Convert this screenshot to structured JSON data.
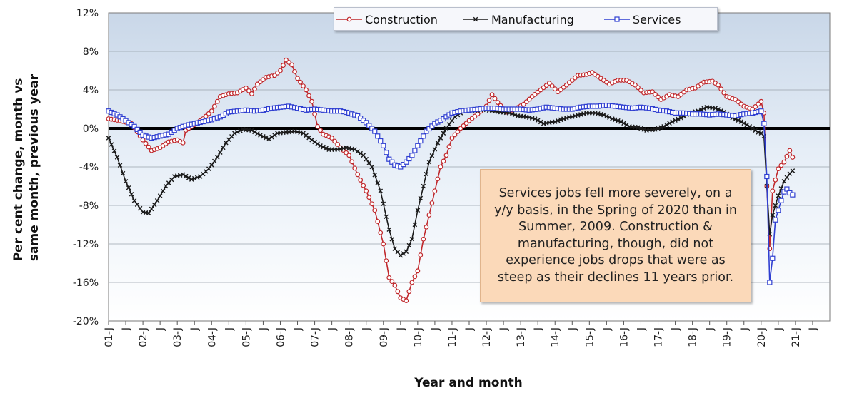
{
  "chart_data": {
    "type": "line",
    "xlabel": "Year and month",
    "ylabel": "Per cent change, month vs same month, previous year",
    "ylim": [
      -20,
      12
    ],
    "yticks": [
      "12%",
      "8%",
      "4%",
      "0%",
      "-4%",
      "-8%",
      "-12%",
      "-16%",
      "-20%"
    ],
    "x_tick_labels": [
      "01-J",
      "J",
      "02-J",
      "J",
      "03-J",
      "J",
      "04-J",
      "J",
      "05-J",
      "J",
      "06-J",
      "J",
      "07-J",
      "J",
      "08-J",
      "J",
      "09-J",
      "J",
      "10-J",
      "J",
      "11-J",
      "J",
      "12-J",
      "J",
      "13-J",
      "J",
      "14-J",
      "J",
      "15-J",
      "J",
      "16-J",
      "J",
      "17-J",
      "J",
      "18-J",
      "J",
      "19-J",
      "J",
      "20-J",
      "J",
      "21-J",
      "J"
    ],
    "legend_position": "top-center",
    "annotation": "Services jobs fell more severely, on a y/y basis, in the Spring of 2020 than in Summer, 2009. Construction & manufacturing, though, did not experience jobs drops that were as steep as their declines 11 years prior.",
    "series": [
      {
        "name": "Construction",
        "color": "#c0282c",
        "marker": "circle",
        "points": [
          [
            "2001-01",
            1.0
          ],
          [
            "2001-05",
            0.8
          ],
          [
            "2001-09",
            0.5
          ],
          [
            "2002-01",
            -1.2
          ],
          [
            "2002-04",
            -2.3
          ],
          [
            "2002-07",
            -2.0
          ],
          [
            "2002-10",
            -1.4
          ],
          [
            "2003-01",
            -1.2
          ],
          [
            "2003-03",
            -1.5
          ],
          [
            "2003-04",
            -0.2
          ],
          [
            "2003-07",
            0.4
          ],
          [
            "2003-10",
            1.0
          ],
          [
            "2004-01",
            1.8
          ],
          [
            "2004-04",
            3.3
          ],
          [
            "2004-07",
            3.6
          ],
          [
            "2004-10",
            3.7
          ],
          [
            "2005-01",
            4.2
          ],
          [
            "2005-03",
            3.6
          ],
          [
            "2005-05",
            4.6
          ],
          [
            "2005-08",
            5.3
          ],
          [
            "2005-11",
            5.5
          ],
          [
            "2006-01",
            6.0
          ],
          [
            "2006-03",
            7.1
          ],
          [
            "2006-05",
            6.6
          ],
          [
            "2006-07",
            5.2
          ],
          [
            "2006-10",
            4.0
          ],
          [
            "2006-12",
            2.8
          ],
          [
            "2007-02",
            0.2
          ],
          [
            "2007-04",
            -0.6
          ],
          [
            "2007-07",
            -1.0
          ],
          [
            "2007-10",
            -2.0
          ],
          [
            "2008-01",
            -2.8
          ],
          [
            "2008-04",
            -4.8
          ],
          [
            "2008-07",
            -6.5
          ],
          [
            "2008-10",
            -8.5
          ],
          [
            "2009-01",
            -12.0
          ],
          [
            "2009-03",
            -15.5
          ],
          [
            "2009-05",
            -16.3
          ],
          [
            "2009-07",
            -17.6
          ],
          [
            "2009-09",
            -17.9
          ],
          [
            "2009-11",
            -16.0
          ],
          [
            "2010-01",
            -14.8
          ],
          [
            "2010-03",
            -11.5
          ],
          [
            "2010-05",
            -9.0
          ],
          [
            "2010-07",
            -6.5
          ],
          [
            "2010-09",
            -4.0
          ],
          [
            "2010-11",
            -2.8
          ],
          [
            "2011-01",
            -1.0
          ],
          [
            "2011-04",
            0.0
          ],
          [
            "2011-07",
            0.8
          ],
          [
            "2011-10",
            1.5
          ],
          [
            "2012-01",
            2.3
          ],
          [
            "2012-03",
            3.5
          ],
          [
            "2012-05",
            2.7
          ],
          [
            "2012-08",
            1.7
          ],
          [
            "2012-11",
            2.0
          ],
          [
            "2013-02",
            2.5
          ],
          [
            "2013-05",
            3.3
          ],
          [
            "2013-08",
            4.0
          ],
          [
            "2013-11",
            4.7
          ],
          [
            "2014-02",
            3.8
          ],
          [
            "2014-05",
            4.5
          ],
          [
            "2014-09",
            5.5
          ],
          [
            "2014-12",
            5.6
          ],
          [
            "2015-02",
            5.8
          ],
          [
            "2015-05",
            5.2
          ],
          [
            "2015-08",
            4.6
          ],
          [
            "2015-11",
            5.0
          ],
          [
            "2016-02",
            5.0
          ],
          [
            "2016-05",
            4.5
          ],
          [
            "2016-08",
            3.7
          ],
          [
            "2016-11",
            3.8
          ],
          [
            "2017-02",
            3.0
          ],
          [
            "2017-05",
            3.5
          ],
          [
            "2017-08",
            3.3
          ],
          [
            "2017-11",
            4.0
          ],
          [
            "2018-02",
            4.2
          ],
          [
            "2018-05",
            4.8
          ],
          [
            "2018-08",
            4.9
          ],
          [
            "2018-10",
            4.5
          ],
          [
            "2019-01",
            3.3
          ],
          [
            "2019-04",
            3.0
          ],
          [
            "2019-07",
            2.3
          ],
          [
            "2019-10",
            2.0
          ],
          [
            "2020-01",
            2.8
          ],
          [
            "2020-02",
            1.6
          ],
          [
            "2020-03",
            -6.0
          ],
          [
            "2020-04",
            -12.5
          ],
          [
            "2020-05",
            -6.5
          ],
          [
            "2020-07",
            -4.2
          ],
          [
            "2020-09",
            -3.5
          ],
          [
            "2020-11",
            -2.3
          ],
          [
            "2020-12",
            -3.0
          ]
        ]
      },
      {
        "name": "Manufacturing",
        "color": "#1a1a1a",
        "marker": "x",
        "points": [
          [
            "2001-01",
            -1.0
          ],
          [
            "2001-04",
            -3.0
          ],
          [
            "2001-07",
            -5.5
          ],
          [
            "2001-10",
            -7.5
          ],
          [
            "2002-01",
            -8.7
          ],
          [
            "2002-03",
            -8.8
          ],
          [
            "2002-06",
            -7.5
          ],
          [
            "2002-09",
            -6.0
          ],
          [
            "2002-12",
            -5.0
          ],
          [
            "2003-03",
            -4.8
          ],
          [
            "2003-06",
            -5.3
          ],
          [
            "2003-09",
            -5.0
          ],
          [
            "2003-12",
            -4.2
          ],
          [
            "2004-03",
            -3.0
          ],
          [
            "2004-06",
            -1.5
          ],
          [
            "2004-09",
            -0.5
          ],
          [
            "2004-12",
            -0.1
          ],
          [
            "2005-03",
            -0.2
          ],
          [
            "2005-06",
            -0.7
          ],
          [
            "2005-09",
            -1.1
          ],
          [
            "2005-12",
            -0.5
          ],
          [
            "2006-03",
            -0.4
          ],
          [
            "2006-06",
            -0.3
          ],
          [
            "2006-09",
            -0.5
          ],
          [
            "2006-12",
            -1.2
          ],
          [
            "2007-03",
            -1.8
          ],
          [
            "2007-06",
            -2.2
          ],
          [
            "2007-09",
            -2.2
          ],
          [
            "2007-12",
            -2.0
          ],
          [
            "2008-03",
            -2.2
          ],
          [
            "2008-06",
            -2.8
          ],
          [
            "2008-09",
            -4.0
          ],
          [
            "2008-12",
            -6.5
          ],
          [
            "2009-03",
            -10.5
          ],
          [
            "2009-05",
            -12.5
          ],
          [
            "2009-07",
            -13.2
          ],
          [
            "2009-09",
            -12.8
          ],
          [
            "2009-11",
            -11.5
          ],
          [
            "2010-01",
            -8.5
          ],
          [
            "2010-03",
            -6.0
          ],
          [
            "2010-05",
            -3.5
          ],
          [
            "2010-08",
            -1.5
          ],
          [
            "2010-11",
            0.0
          ],
          [
            "2011-02",
            1.2
          ],
          [
            "2011-05",
            1.8
          ],
          [
            "2011-09",
            1.8
          ],
          [
            "2011-12",
            2.0
          ],
          [
            "2012-03",
            1.8
          ],
          [
            "2012-06",
            1.7
          ],
          [
            "2012-09",
            1.6
          ],
          [
            "2012-12",
            1.3
          ],
          [
            "2013-03",
            1.2
          ],
          [
            "2013-06",
            1.0
          ],
          [
            "2013-09",
            0.5
          ],
          [
            "2014-01",
            0.7
          ],
          [
            "2014-04",
            1.0
          ],
          [
            "2014-08",
            1.3
          ],
          [
            "2014-12",
            1.6
          ],
          [
            "2015-03",
            1.6
          ],
          [
            "2015-06",
            1.4
          ],
          [
            "2015-09",
            1.0
          ],
          [
            "2015-12",
            0.7
          ],
          [
            "2016-03",
            0.2
          ],
          [
            "2016-06",
            0.1
          ],
          [
            "2016-09",
            -0.2
          ],
          [
            "2016-12",
            -0.1
          ],
          [
            "2017-03",
            0.2
          ],
          [
            "2017-06",
            0.7
          ],
          [
            "2017-09",
            1.1
          ],
          [
            "2017-12",
            1.6
          ],
          [
            "2018-03",
            1.8
          ],
          [
            "2018-06",
            2.2
          ],
          [
            "2018-09",
            2.1
          ],
          [
            "2018-12",
            1.7
          ],
          [
            "2019-03",
            1.1
          ],
          [
            "2019-06",
            0.7
          ],
          [
            "2019-09",
            0.2
          ],
          [
            "2019-12",
            -0.4
          ],
          [
            "2020-01",
            -0.5
          ],
          [
            "2020-02",
            -0.8
          ],
          [
            "2020-03",
            -6.0
          ],
          [
            "2020-04",
            -11.0
          ],
          [
            "2020-05",
            -9.0
          ],
          [
            "2020-07",
            -7.0
          ],
          [
            "2020-09",
            -5.5
          ],
          [
            "2020-11",
            -4.7
          ],
          [
            "2020-12",
            -4.4
          ]
        ]
      },
      {
        "name": "Services",
        "color": "#2f3fd1",
        "marker": "square",
        "points": [
          [
            "2001-01",
            1.8
          ],
          [
            "2001-04",
            1.4
          ],
          [
            "2001-07",
            0.8
          ],
          [
            "2001-10",
            0.2
          ],
          [
            "2002-01",
            -0.7
          ],
          [
            "2002-04",
            -1.0
          ],
          [
            "2002-07",
            -0.8
          ],
          [
            "2002-10",
            -0.6
          ],
          [
            "2003-01",
            0.0
          ],
          [
            "2003-04",
            0.3
          ],
          [
            "2003-07",
            0.5
          ],
          [
            "2003-10",
            0.7
          ],
          [
            "2004-01",
            0.9
          ],
          [
            "2004-04",
            1.2
          ],
          [
            "2004-07",
            1.7
          ],
          [
            "2004-10",
            1.8
          ],
          [
            "2005-01",
            1.9
          ],
          [
            "2005-04",
            1.8
          ],
          [
            "2005-07",
            1.9
          ],
          [
            "2005-10",
            2.1
          ],
          [
            "2006-01",
            2.2
          ],
          [
            "2006-04",
            2.3
          ],
          [
            "2006-07",
            2.1
          ],
          [
            "2006-10",
            1.9
          ],
          [
            "2007-01",
            2.0
          ],
          [
            "2007-04",
            1.9
          ],
          [
            "2007-07",
            1.8
          ],
          [
            "2007-10",
            1.8
          ],
          [
            "2008-01",
            1.6
          ],
          [
            "2008-04",
            1.3
          ],
          [
            "2008-07",
            0.6
          ],
          [
            "2008-10",
            -0.3
          ],
          [
            "2009-01",
            -1.8
          ],
          [
            "2009-03",
            -3.2
          ],
          [
            "2009-05",
            -3.8
          ],
          [
            "2009-07",
            -4.0
          ],
          [
            "2009-09",
            -3.5
          ],
          [
            "2009-11",
            -2.8
          ],
          [
            "2010-01",
            -1.8
          ],
          [
            "2010-04",
            -0.3
          ],
          [
            "2010-07",
            0.5
          ],
          [
            "2010-10",
            1.0
          ],
          [
            "2011-01",
            1.6
          ],
          [
            "2011-04",
            1.8
          ],
          [
            "2011-07",
            1.9
          ],
          [
            "2011-10",
            2.0
          ],
          [
            "2012-01",
            2.1
          ],
          [
            "2012-04",
            2.1
          ],
          [
            "2012-07",
            2.0
          ],
          [
            "2012-10",
            2.0
          ],
          [
            "2013-01",
            2.0
          ],
          [
            "2013-04",
            1.9
          ],
          [
            "2013-07",
            2.0
          ],
          [
            "2013-10",
            2.2
          ],
          [
            "2014-01",
            2.1
          ],
          [
            "2014-04",
            2.0
          ],
          [
            "2014-07",
            2.0
          ],
          [
            "2014-10",
            2.2
          ],
          [
            "2015-01",
            2.3
          ],
          [
            "2015-04",
            2.3
          ],
          [
            "2015-07",
            2.4
          ],
          [
            "2015-10",
            2.3
          ],
          [
            "2016-01",
            2.2
          ],
          [
            "2016-04",
            2.1
          ],
          [
            "2016-07",
            2.2
          ],
          [
            "2016-10",
            2.1
          ],
          [
            "2017-01",
            1.9
          ],
          [
            "2017-04",
            1.8
          ],
          [
            "2017-07",
            1.6
          ],
          [
            "2017-10",
            1.6
          ],
          [
            "2018-01",
            1.5
          ],
          [
            "2018-04",
            1.5
          ],
          [
            "2018-07",
            1.4
          ],
          [
            "2018-10",
            1.5
          ],
          [
            "2019-01",
            1.4
          ],
          [
            "2019-04",
            1.3
          ],
          [
            "2019-07",
            1.5
          ],
          [
            "2019-10",
            1.6
          ],
          [
            "2020-01",
            1.8
          ],
          [
            "2020-02",
            0.5
          ],
          [
            "2020-03",
            -5.0
          ],
          [
            "2020-04",
            -16.0
          ],
          [
            "2020-05",
            -13.5
          ],
          [
            "2020-06",
            -9.5
          ],
          [
            "2020-07",
            -8.5
          ],
          [
            "2020-08",
            -7.5
          ],
          [
            "2020-09",
            -6.6
          ],
          [
            "2020-10",
            -6.3
          ],
          [
            "2020-11",
            -6.7
          ],
          [
            "2020-12",
            -6.9
          ]
        ]
      }
    ]
  }
}
